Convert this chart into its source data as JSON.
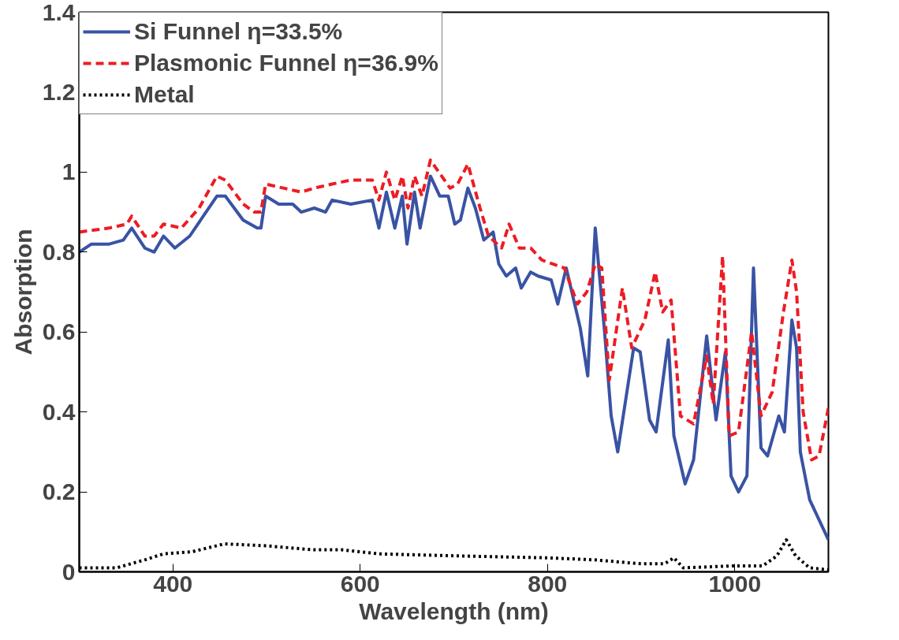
{
  "chart_data": {
    "type": "line",
    "xlabel": "Wavelength (nm)",
    "ylabel": "Absorption",
    "xlim": [
      300,
      1100
    ],
    "ylim": [
      0,
      1.4
    ],
    "xticks": [
      400,
      600,
      800,
      1000
    ],
    "yticks": [
      0,
      0.2,
      0.4,
      0.6,
      0.8,
      1,
      1.2,
      1.4
    ],
    "grid": false,
    "legend": "top left",
    "series": [
      {
        "name": "Si Funnel η=33.5%",
        "color": "#3953a4",
        "line_style": "solid",
        "x": [
          300,
          313,
          332,
          347,
          356,
          370,
          380,
          390,
          402,
          418,
          447,
          456,
          475,
          490,
          494,
          499,
          513,
          528,
          537,
          551,
          563,
          570,
          590,
          613,
          620,
          628,
          637,
          645,
          650,
          658,
          664,
          675,
          685,
          694,
          701,
          707,
          715,
          723,
          732,
          742,
          748,
          756,
          766,
          772,
          782,
          790,
          804,
          811,
          820,
          835,
          843,
          851,
          861,
          868,
          875,
          892,
          899,
          909,
          916,
          929,
          935,
          947,
          956,
          970,
          980,
          990,
          996,
          1004,
          1013,
          1020,
          1028,
          1035,
          1047,
          1053,
          1061,
          1066,
          1070,
          1080,
          1100
        ],
        "values": [
          0.8,
          0.82,
          0.82,
          0.83,
          0.86,
          0.81,
          0.8,
          0.84,
          0.81,
          0.84,
          0.94,
          0.94,
          0.88,
          0.86,
          0.86,
          0.94,
          0.92,
          0.92,
          0.9,
          0.91,
          0.9,
          0.93,
          0.92,
          0.93,
          0.86,
          0.95,
          0.86,
          0.94,
          0.82,
          0.95,
          0.86,
          0.99,
          0.94,
          0.94,
          0.87,
          0.88,
          0.96,
          0.91,
          0.83,
          0.85,
          0.77,
          0.74,
          0.76,
          0.71,
          0.75,
          0.74,
          0.73,
          0.67,
          0.76,
          0.61,
          0.49,
          0.86,
          0.6,
          0.39,
          0.3,
          0.56,
          0.55,
          0.38,
          0.35,
          0.58,
          0.34,
          0.22,
          0.28,
          0.59,
          0.38,
          0.55,
          0.24,
          0.2,
          0.24,
          0.76,
          0.31,
          0.29,
          0.39,
          0.35,
          0.63,
          0.56,
          0.3,
          0.18,
          0.08
        ]
      },
      {
        "name": "Plasmonic Funnel η=36.9%",
        "color": "#ed1c24",
        "line_style": "dashed",
        "x": [
          300,
          332,
          351,
          356,
          370,
          380,
          390,
          409,
          428,
          447,
          456,
          475,
          487,
          494,
          499,
          518,
          537,
          551,
          570,
          590,
          613,
          620,
          628,
          637,
          645,
          651,
          658,
          666,
          675,
          687,
          696,
          704,
          715,
          728,
          737,
          751,
          759,
          770,
          782,
          794,
          818,
          832,
          842,
          851,
          858,
          866,
          880,
          890,
          904,
          915,
          923,
          932,
          942,
          956,
          970,
          977,
          987,
          994,
          1004,
          1018,
          1028,
          1040,
          1052,
          1061,
          1066,
          1073,
          1082,
          1090,
          1100
        ],
        "values": [
          0.85,
          0.86,
          0.87,
          0.89,
          0.84,
          0.84,
          0.87,
          0.86,
          0.91,
          0.99,
          0.98,
          0.92,
          0.9,
          0.9,
          0.97,
          0.96,
          0.95,
          0.96,
          0.97,
          0.98,
          0.98,
          0.93,
          1.0,
          0.93,
          0.99,
          0.91,
          0.99,
          0.94,
          1.03,
          0.99,
          0.96,
          0.97,
          1.02,
          0.91,
          0.84,
          0.81,
          0.87,
          0.81,
          0.81,
          0.78,
          0.76,
          0.67,
          0.7,
          0.77,
          0.76,
          0.48,
          0.71,
          0.56,
          0.63,
          0.75,
          0.65,
          0.68,
          0.39,
          0.37,
          0.54,
          0.42,
          0.79,
          0.34,
          0.35,
          0.6,
          0.39,
          0.45,
          0.65,
          0.78,
          0.7,
          0.4,
          0.28,
          0.29,
          0.41
        ]
      },
      {
        "name": "Metal",
        "color": "#000000",
        "line_style": "dotted",
        "x": [
          300,
          340,
          370,
          390,
          420,
          455,
          500,
          550,
          580,
          620,
          700,
          800,
          850,
          900,
          925,
          935,
          945,
          1000,
          1030,
          1045,
          1055,
          1065,
          1080,
          1100
        ],
        "values": [
          0.01,
          0.01,
          0.03,
          0.045,
          0.05,
          0.07,
          0.065,
          0.055,
          0.055,
          0.045,
          0.04,
          0.035,
          0.03,
          0.02,
          0.02,
          0.035,
          0.01,
          0.015,
          0.015,
          0.04,
          0.08,
          0.04,
          0.01,
          0.005
        ]
      }
    ]
  }
}
